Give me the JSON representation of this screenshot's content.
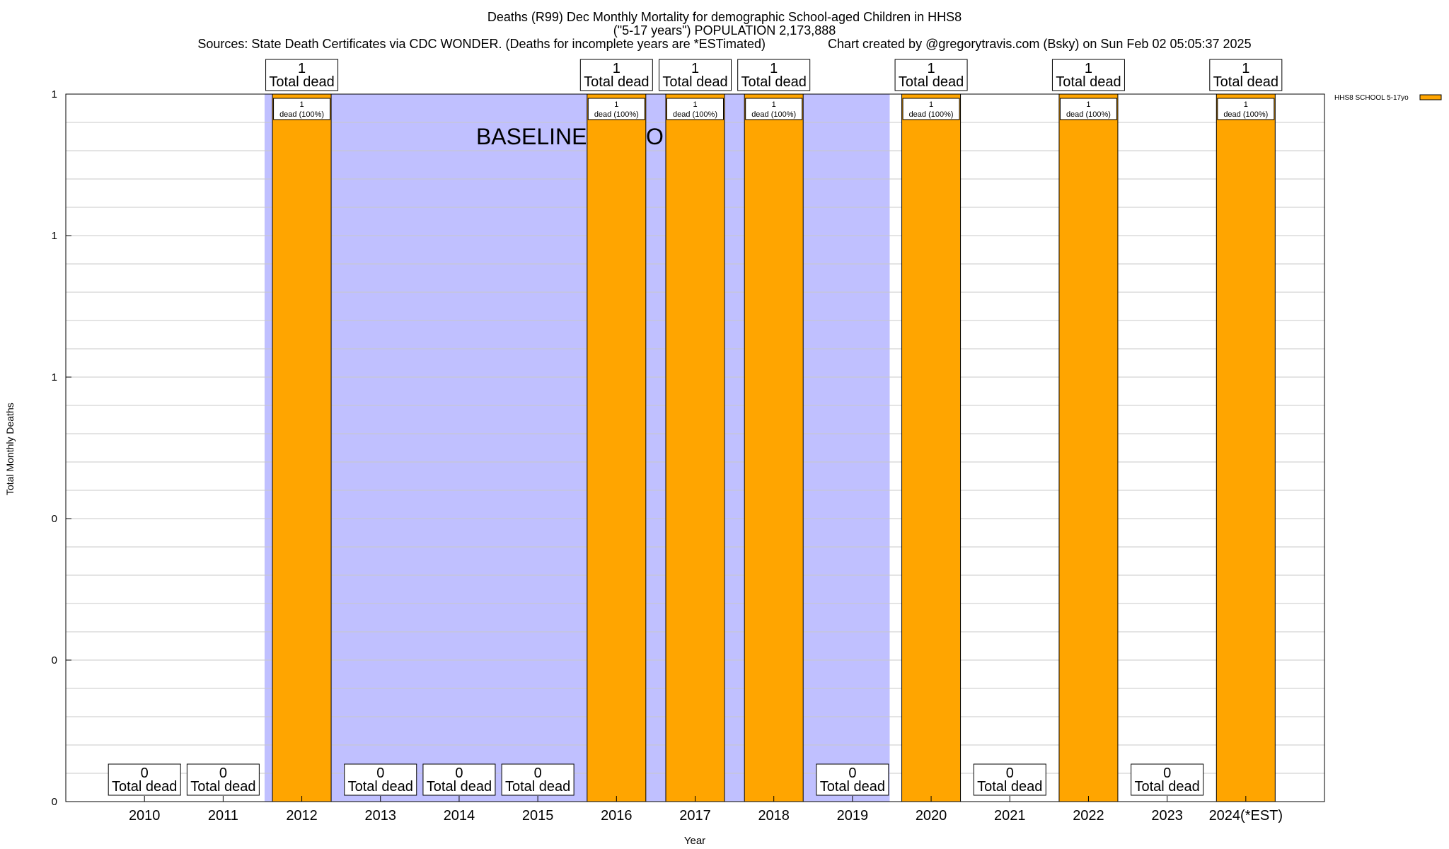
{
  "title": {
    "line1": "Deaths (R99) Dec Monthly Mortality for demographic School-aged Children in HHS8",
    "line2": "(\"5-17 years\") POPULATION 2,173,888",
    "line3_left": "Sources: State Death Certificates via CDC WONDER. (Deaths for incomplete years are *ESTimated)",
    "line3_right": "Chart created by @gregorytravis.com (Bsky) on Sun Feb 02 05:05:37 2025"
  },
  "chart_data": {
    "type": "bar",
    "title": "Deaths (R99) Dec Monthly Mortality for demographic School-aged Children in HHS8",
    "xlabel": "Year",
    "ylabel": "Total Monthly Deaths",
    "ylim": [
      0,
      1
    ],
    "yticks": [
      0,
      0.2,
      0.4,
      0.6,
      0.8,
      1.0
    ],
    "ytick_labels": [
      "0",
      "0",
      "0",
      "1",
      "1",
      "1"
    ],
    "grid": true,
    "categories": [
      "2010",
      "2011",
      "2012",
      "2013",
      "2014",
      "2015",
      "2016",
      "2017",
      "2018",
      "2019",
      "2020",
      "2021",
      "2022",
      "2023",
      "2024(*EST)"
    ],
    "series": [
      {
        "name": "HHS8 SCHOOL 5-17yo",
        "color": "#ffa500",
        "values": [
          0,
          0,
          1,
          0,
          0,
          0,
          1,
          1,
          1,
          0,
          1,
          0,
          1,
          0,
          1
        ]
      }
    ],
    "total_label_values": [
      "0",
      "0",
      "1",
      "0",
      "0",
      "0",
      "1",
      "1",
      "1",
      "0",
      "1",
      "0",
      "1",
      "0",
      "1"
    ],
    "total_label_caption": "Total dead",
    "inner_label_value": "1",
    "inner_label_caption": "dead (100%)",
    "baseline": {
      "label": "BASELINE PERIOD",
      "from": "2012",
      "to": "2019",
      "color": "#c0c0ff"
    },
    "legend": {
      "entry": "HHS8 SCHOOL 5-17yo",
      "placement": "top-right-outside"
    }
  }
}
